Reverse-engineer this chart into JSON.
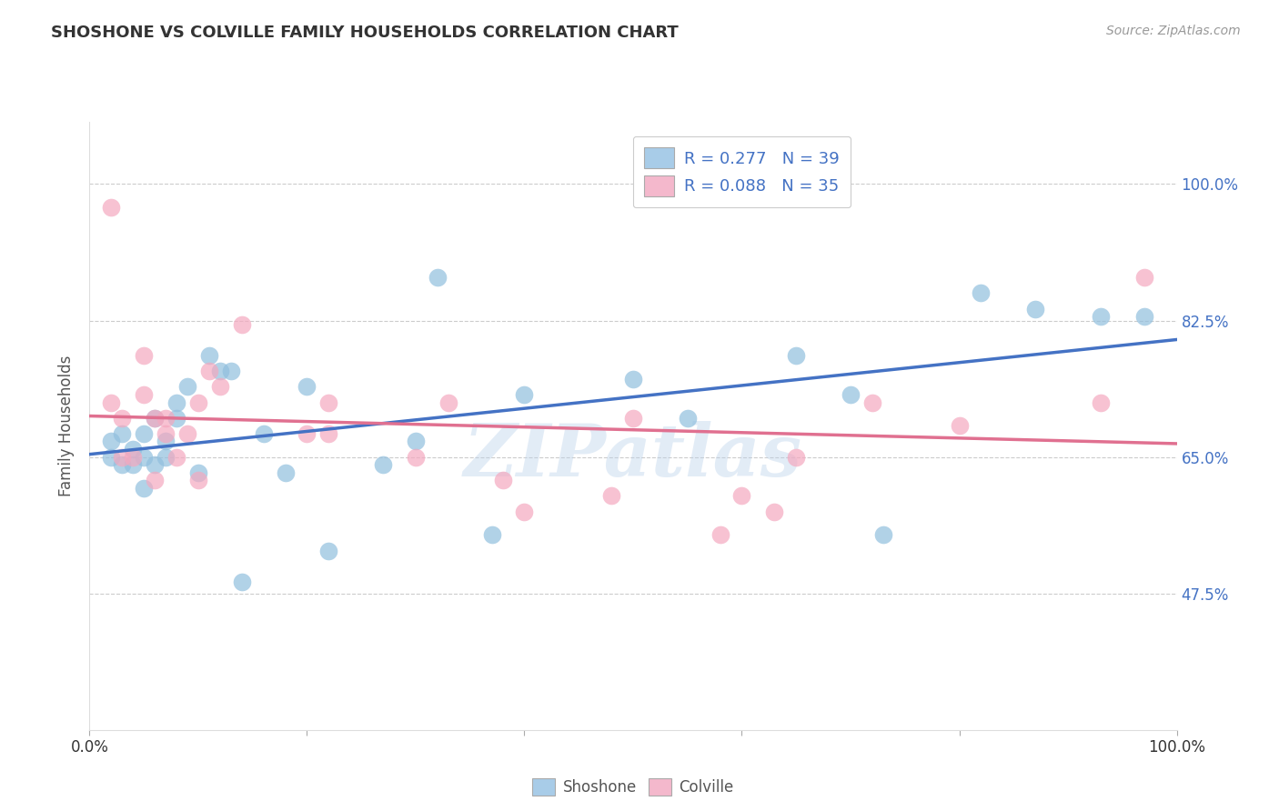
{
  "title": "SHOSHONE VS COLVILLE FAMILY HOUSEHOLDS CORRELATION CHART",
  "source": "Source: ZipAtlas.com",
  "ylabel": "Family Households",
  "xlim": [
    0.0,
    1.0
  ],
  "ylim": [
    0.3,
    1.08
  ],
  "yticks": [
    0.475,
    0.65,
    0.825,
    1.0
  ],
  "ytick_labels": [
    "47.5%",
    "65.0%",
    "82.5%",
    "100.0%"
  ],
  "xticks": [
    0.0,
    0.2,
    0.4,
    0.6,
    0.8,
    1.0
  ],
  "xtick_labels": [
    "0.0%",
    "",
    "",
    "",
    "",
    "100.0%"
  ],
  "legend_labels": [
    "R = 0.277   N = 39",
    "R = 0.088   N = 35"
  ],
  "bottom_legend": [
    "Shoshone",
    "Colville"
  ],
  "shoshone_color": "#91bfde",
  "colville_color": "#f4a8bf",
  "shoshone_line_color": "#4472c4",
  "colville_line_color": "#e07090",
  "legend_box_blue": "#a8cce8",
  "legend_box_pink": "#f4b8cc",
  "watermark": "ZIPatlas",
  "background_color": "#ffffff",
  "grid_color": "#cccccc",
  "title_color": "#333333",
  "source_color": "#999999",
  "tick_color_right": "#4472c4",
  "shoshone_x": [
    0.02,
    0.02,
    0.03,
    0.03,
    0.04,
    0.04,
    0.05,
    0.05,
    0.05,
    0.06,
    0.06,
    0.07,
    0.07,
    0.08,
    0.08,
    0.09,
    0.1,
    0.11,
    0.12,
    0.13,
    0.14,
    0.16,
    0.18,
    0.2,
    0.22,
    0.27,
    0.3,
    0.32,
    0.37,
    0.4,
    0.5,
    0.55,
    0.65,
    0.7,
    0.73,
    0.82,
    0.87,
    0.93,
    0.97
  ],
  "shoshone_y": [
    0.67,
    0.65,
    0.64,
    0.68,
    0.64,
    0.66,
    0.61,
    0.65,
    0.68,
    0.7,
    0.64,
    0.65,
    0.67,
    0.7,
    0.72,
    0.74,
    0.63,
    0.78,
    0.76,
    0.76,
    0.49,
    0.68,
    0.63,
    0.74,
    0.53,
    0.64,
    0.67,
    0.88,
    0.55,
    0.73,
    0.75,
    0.7,
    0.78,
    0.73,
    0.55,
    0.86,
    0.84,
    0.83,
    0.83
  ],
  "colville_x": [
    0.02,
    0.02,
    0.03,
    0.03,
    0.04,
    0.05,
    0.05,
    0.06,
    0.06,
    0.07,
    0.07,
    0.08,
    0.09,
    0.1,
    0.1,
    0.11,
    0.12,
    0.14,
    0.2,
    0.22,
    0.22,
    0.3,
    0.33,
    0.38,
    0.4,
    0.48,
    0.5,
    0.58,
    0.6,
    0.63,
    0.65,
    0.72,
    0.8,
    0.93,
    0.97
  ],
  "colville_y": [
    0.97,
    0.72,
    0.65,
    0.7,
    0.65,
    0.78,
    0.73,
    0.62,
    0.7,
    0.68,
    0.7,
    0.65,
    0.68,
    0.62,
    0.72,
    0.76,
    0.74,
    0.82,
    0.68,
    0.68,
    0.72,
    0.65,
    0.72,
    0.62,
    0.58,
    0.6,
    0.7,
    0.55,
    0.6,
    0.58,
    0.65,
    0.72,
    0.69,
    0.72,
    0.88
  ]
}
